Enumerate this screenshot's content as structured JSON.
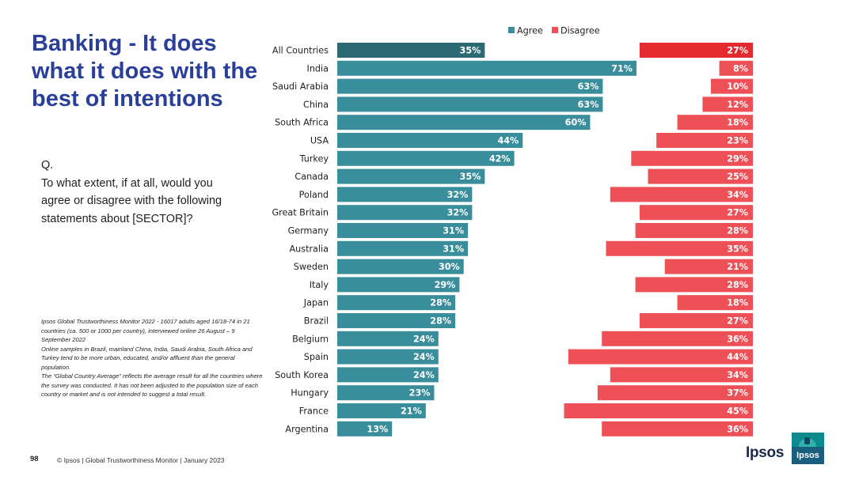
{
  "slide": {
    "title": "Banking - It does what it does with the best of intentions",
    "question_lines": [
      "Q.",
      "To what extent, if at all, would you agree or disagree with the following statements about [SECTOR]?"
    ],
    "source_lines": [
      "Ipsos Global Trustworthiness Monitor 2022 - 16017 adults aged 16/18-74 in 21 countries (ca. 500 or 1000 per country), interviewed online 26 August – 9 September 2022",
      "Online samples in Brazil, mainland China, India, Saudi Arabia, South Africa and Turkey tend to be more urban, educated, and/or affluent than the general population.",
      "The “Global Country Average” reflects the average result for all the countries where the survey was conducted. It has not been adjusted to the population size of each country or market and is not intended to suggest a total result."
    ],
    "page_number": "98",
    "footer": "© Ipsos | Global Trustworthiness Monitor | January 2023",
    "brand_wordmark": "Ipsos",
    "brand_badge_text": "Ipsos"
  },
  "colors": {
    "agree": "#3a8e9b",
    "agree_total": "#2b6a73",
    "disagree": "#ee5058",
    "disagree_total": "#e22a2f",
    "title": "#2a3f9a"
  },
  "chart_data": {
    "type": "bar",
    "orientation": "horizontal",
    "layout": "diverging-split",
    "legend_position": "top",
    "categories": [
      "All Countries",
      "India",
      "Saudi Arabia",
      "China",
      "South Africa",
      "USA",
      "Turkey",
      "Canada",
      "Poland",
      "Great Britain",
      "Germany",
      "Australia",
      "Sweden",
      "Italy",
      "Japan",
      "Brazil",
      "Belgium",
      "Spain",
      "South Korea",
      "Hungary",
      "France",
      "Argentina"
    ],
    "series": [
      {
        "name": "Agree",
        "values": [
          35,
          71,
          63,
          63,
          60,
          44,
          42,
          35,
          32,
          32,
          31,
          31,
          30,
          29,
          28,
          28,
          24,
          24,
          24,
          23,
          21,
          13
        ]
      },
      {
        "name": "Disagree",
        "values": [
          27,
          8,
          10,
          12,
          18,
          23,
          29,
          25,
          34,
          27,
          28,
          35,
          21,
          28,
          18,
          27,
          36,
          44,
          34,
          37,
          45,
          36
        ]
      }
    ],
    "value_suffix": "%",
    "xlim": [
      0,
      100
    ]
  }
}
